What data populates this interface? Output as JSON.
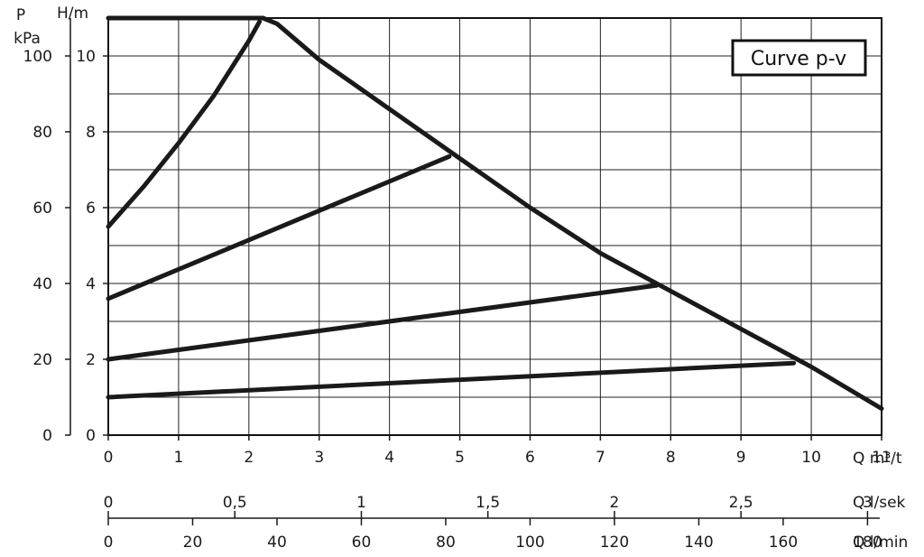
{
  "chart_data": {
    "type": "line",
    "title": "",
    "legend_box_label": "Curve  p-v",
    "legend_position": "top-right",
    "grid": true,
    "x_axis": {
      "label": "Q m³/t",
      "range": [
        0,
        11
      ],
      "ticks": [
        "0",
        "1",
        "2",
        "3",
        "4",
        "5",
        "6",
        "7",
        "8",
        "9",
        "10",
        "11"
      ]
    },
    "y_axis_head": {
      "label": "H/m",
      "range": [
        0,
        11
      ],
      "ticks": [
        "0",
        "2",
        "4",
        "6",
        "8",
        "10"
      ]
    },
    "y_axis_pressure": {
      "label_line1": "P",
      "label_line2": "kPa",
      "range": [
        0,
        110
      ],
      "ticks": [
        "0",
        "20",
        "40",
        "60",
        "80",
        "100"
      ]
    },
    "secondary_x_axes": [
      {
        "label": "Q l/sek",
        "ticks": [
          {
            "value": 0,
            "label": "0"
          },
          {
            "value": 0.5,
            "label": "0,5"
          },
          {
            "value": 1,
            "label": "1"
          },
          {
            "value": 1.5,
            "label": "1,5"
          },
          {
            "value": 2,
            "label": "2"
          },
          {
            "value": 2.5,
            "label": "2,5"
          },
          {
            "value": 3,
            "label": "3"
          }
        ]
      },
      {
        "label": "Q l/min",
        "ticks": [
          {
            "value": 0,
            "label": "0"
          },
          {
            "value": 20,
            "label": "20"
          },
          {
            "value": 40,
            "label": "40"
          },
          {
            "value": 60,
            "label": "60"
          },
          {
            "value": 80,
            "label": "80"
          },
          {
            "value": 100,
            "label": "100"
          },
          {
            "value": 120,
            "label": "120"
          },
          {
            "value": 140,
            "label": "140"
          },
          {
            "value": 160,
            "label": "160"
          },
          {
            "value": 180,
            "label": "180"
          }
        ]
      }
    ],
    "series": [
      {
        "x": [
          0,
          0.5,
          1,
          1.5,
          2.0,
          2.15
        ],
        "y": [
          5.5,
          6.55,
          7.7,
          8.95,
          10.4,
          10.9
        ]
      },
      {
        "x": [
          0,
          1,
          2,
          2.2,
          2.4,
          3,
          4,
          5,
          6,
          7,
          8,
          9,
          10,
          11
        ],
        "y": [
          11,
          11,
          11,
          11,
          10.85,
          9.9,
          8.6,
          7.3,
          6.0,
          4.8,
          3.8,
          2.8,
          1.8,
          0.7
        ]
      },
      {
        "x": [
          0,
          4.85
        ],
        "y": [
          3.6,
          7.35
        ]
      },
      {
        "x": [
          0,
          7.8
        ],
        "y": [
          2.0,
          3.95
        ]
      },
      {
        "x": [
          0,
          9.75
        ],
        "y": [
          1.0,
          1.9
        ]
      }
    ]
  }
}
